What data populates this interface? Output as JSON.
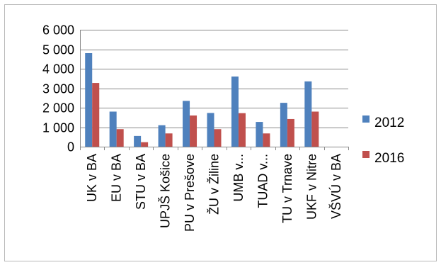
{
  "chart_data": {
    "type": "bar",
    "title": "",
    "xlabel": "",
    "ylabel": "",
    "ylim": [
      0,
      6000
    ],
    "y_ticks": [
      0,
      1000,
      2000,
      3000,
      4000,
      5000,
      6000
    ],
    "y_tick_labels": [
      "0",
      "1 000",
      "2 000",
      "3 000",
      "4 000",
      "5 000",
      "6 000"
    ],
    "grid": "horizontal",
    "legend_position": "right",
    "categories": [
      "UK v BA",
      "EU v BA",
      "STU v BA",
      "UPJŠ Košice",
      "PU v Prešove",
      "ŽU v Žiline",
      "UMB v...",
      "TUAD v...",
      "TU v Trnave",
      "UKF v Nitre",
      "VŠVÚ v BA"
    ],
    "series": [
      {
        "name": "2012",
        "color": "#4f81bd",
        "values": [
          4800,
          1800,
          550,
          1100,
          2350,
          1730,
          3600,
          1270,
          2250,
          3350,
          0
        ]
      },
      {
        "name": "2016",
        "color": "#c0504d",
        "values": [
          3270,
          900,
          230,
          680,
          1600,
          900,
          1720,
          680,
          1420,
          1800,
          0
        ]
      }
    ]
  }
}
